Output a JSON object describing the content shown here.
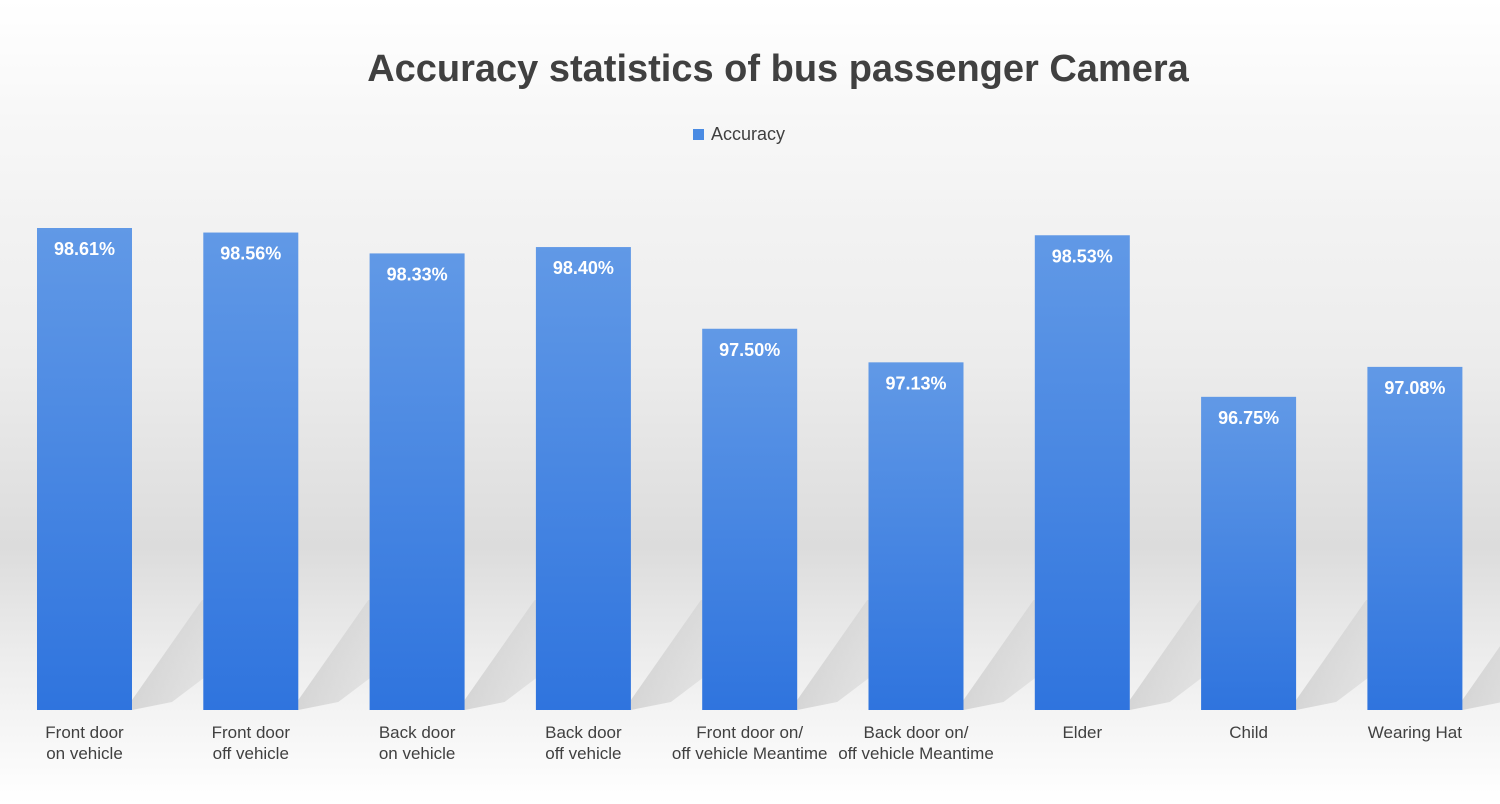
{
  "chart_data": {
    "type": "bar",
    "title": "Accuracy statistics of bus passenger Camera",
    "xlabel": "",
    "ylabel": "",
    "ylim": [
      93.3,
      99
    ],
    "grid": false,
    "legend_position": "top-center",
    "categories": [
      [
        "Front door",
        "on vehicle"
      ],
      [
        "Front door",
        "off vehicle"
      ],
      [
        "Back door",
        "on vehicle"
      ],
      [
        "Back door",
        "off vehicle"
      ],
      [
        "Front door on/",
        "off vehicle Meantime"
      ],
      [
        "Back door on/",
        "off vehicle Meantime"
      ],
      [
        "Elder"
      ],
      [
        "Child"
      ],
      [
        "Wearing Hat"
      ]
    ],
    "series": [
      {
        "name": "Accuracy",
        "values": [
          98.61,
          98.56,
          98.33,
          98.4,
          97.5,
          97.13,
          98.53,
          96.75,
          97.08
        ],
        "labels": [
          "98.61%",
          "98.56%",
          "98.33%",
          "98.40%",
          "97.50%",
          "97.13%",
          "98.53%",
          "96.75%",
          "97.08%"
        ],
        "color": "#4a8be3"
      }
    ],
    "colors": {
      "bar_top": "#6199e6",
      "bar_bottom": "#2f74de",
      "shadow": "#bdbdbd"
    }
  }
}
